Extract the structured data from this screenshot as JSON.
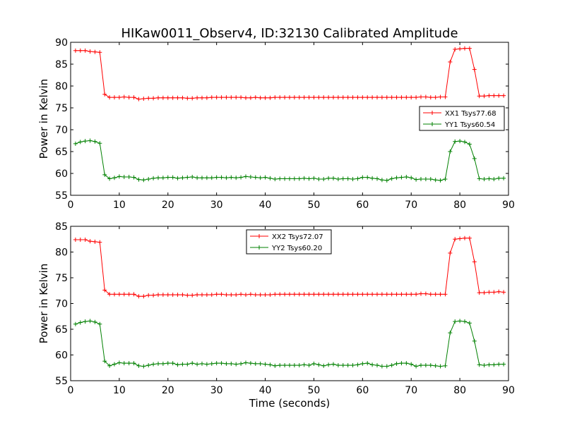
{
  "figure": {
    "title": "HIKaw0011_Observ4, ID:32130 Calibrated Amplitude",
    "xlabel": "Time (seconds)"
  },
  "chart_data": [
    {
      "type": "line",
      "ylabel": "Power in Kelvin",
      "xlim": [
        0,
        90
      ],
      "ylim": [
        55,
        90
      ],
      "xticks": [
        "0",
        "10",
        "20",
        "30",
        "40",
        "50",
        "60",
        "70",
        "80",
        "90"
      ],
      "yticks": [
        "55",
        "60",
        "65",
        "70",
        "75",
        "80",
        "85",
        "90"
      ],
      "legend_position": "center-right",
      "x": [
        1,
        2,
        3,
        4,
        5,
        6,
        7,
        8,
        9,
        10,
        11,
        12,
        13,
        14,
        15,
        16,
        17,
        18,
        19,
        20,
        21,
        22,
        23,
        24,
        25,
        26,
        27,
        28,
        29,
        30,
        31,
        32,
        33,
        34,
        35,
        36,
        37,
        38,
        39,
        40,
        41,
        42,
        43,
        44,
        45,
        46,
        47,
        48,
        49,
        50,
        51,
        52,
        53,
        54,
        55,
        56,
        57,
        58,
        59,
        60,
        61,
        62,
        63,
        64,
        65,
        66,
        67,
        68,
        69,
        70,
        71,
        72,
        73,
        74,
        75,
        76,
        77,
        78,
        79,
        80,
        81,
        82,
        83,
        84,
        85,
        86,
        87,
        88,
        89
      ],
      "series": [
        {
          "name": "XX1 Tsys77.68",
          "color": "#ff0000",
          "values": [
            88.1,
            88.1,
            88.1,
            87.9,
            87.8,
            87.7,
            78.1,
            77.4,
            77.4,
            77.4,
            77.5,
            77.4,
            77.4,
            77.0,
            77.1,
            77.2,
            77.2,
            77.3,
            77.3,
            77.3,
            77.3,
            77.3,
            77.3,
            77.2,
            77.2,
            77.3,
            77.3,
            77.3,
            77.4,
            77.4,
            77.4,
            77.4,
            77.4,
            77.4,
            77.4,
            77.3,
            77.3,
            77.4,
            77.3,
            77.3,
            77.3,
            77.4,
            77.4,
            77.4,
            77.4,
            77.4,
            77.4,
            77.4,
            77.4,
            77.4,
            77.4,
            77.4,
            77.4,
            77.4,
            77.4,
            77.4,
            77.4,
            77.4,
            77.4,
            77.4,
            77.4,
            77.4,
            77.4,
            77.4,
            77.4,
            77.4,
            77.4,
            77.4,
            77.4,
            77.4,
            77.4,
            77.5,
            77.5,
            77.4,
            77.4,
            77.5,
            77.5,
            85.5,
            88.4,
            88.5,
            88.6,
            88.6,
            83.8,
            77.7,
            77.7,
            77.8,
            77.8,
            77.8,
            77.8
          ]
        },
        {
          "name": "YY1 Tsys60.54",
          "color": "#008000",
          "values": [
            66.8,
            67.2,
            67.4,
            67.5,
            67.3,
            66.9,
            59.7,
            58.8,
            59.0,
            59.3,
            59.2,
            59.2,
            59.1,
            58.6,
            58.5,
            58.7,
            58.9,
            59.0,
            59.0,
            59.1,
            59.1,
            58.9,
            59.0,
            59.1,
            59.2,
            59.0,
            59.0,
            59.0,
            59.0,
            59.1,
            59.1,
            59.0,
            59.1,
            59.0,
            59.1,
            59.3,
            59.2,
            59.1,
            59.0,
            59.1,
            58.9,
            58.7,
            58.8,
            58.8,
            58.8,
            58.8,
            58.8,
            58.9,
            58.8,
            58.9,
            58.7,
            58.7,
            58.9,
            58.9,
            58.7,
            58.8,
            58.8,
            58.7,
            58.8,
            59.1,
            59.1,
            58.9,
            58.8,
            58.5,
            58.4,
            58.8,
            59.0,
            59.1,
            59.2,
            59.0,
            58.6,
            58.7,
            58.7,
            58.7,
            58.5,
            58.4,
            58.7,
            65.0,
            67.3,
            67.4,
            67.2,
            66.7,
            63.4,
            58.8,
            58.7,
            58.8,
            58.7,
            58.9,
            58.9
          ]
        }
      ]
    },
    {
      "type": "line",
      "ylabel": "Power in Kelvin",
      "xlim": [
        0,
        90
      ],
      "ylim": [
        55,
        85
      ],
      "xticks": [
        "0",
        "10",
        "20",
        "30",
        "40",
        "50",
        "60",
        "70",
        "80",
        "90"
      ],
      "yticks": [
        "55",
        "60",
        "65",
        "70",
        "75",
        "80",
        "85"
      ],
      "legend_position": "top-center",
      "x": [
        1,
        2,
        3,
        4,
        5,
        6,
        7,
        8,
        9,
        10,
        11,
        12,
        13,
        14,
        15,
        16,
        17,
        18,
        19,
        20,
        21,
        22,
        23,
        24,
        25,
        26,
        27,
        28,
        29,
        30,
        31,
        32,
        33,
        34,
        35,
        36,
        37,
        38,
        39,
        40,
        41,
        42,
        43,
        44,
        45,
        46,
        47,
        48,
        49,
        50,
        51,
        52,
        53,
        54,
        55,
        56,
        57,
        58,
        59,
        60,
        61,
        62,
        63,
        64,
        65,
        66,
        67,
        68,
        69,
        70,
        71,
        72,
        73,
        74,
        75,
        76,
        77,
        78,
        79,
        80,
        81,
        82,
        83,
        84,
        85,
        86,
        87,
        88,
        89
      ],
      "series": [
        {
          "name": "XX2 Tsys72.07",
          "color": "#ff0000",
          "values": [
            82.4,
            82.4,
            82.4,
            82.1,
            82.0,
            81.9,
            72.6,
            71.8,
            71.8,
            71.8,
            71.8,
            71.8,
            71.8,
            71.4,
            71.4,
            71.6,
            71.6,
            71.7,
            71.7,
            71.7,
            71.7,
            71.7,
            71.7,
            71.6,
            71.6,
            71.7,
            71.7,
            71.7,
            71.7,
            71.8,
            71.8,
            71.7,
            71.7,
            71.7,
            71.8,
            71.7,
            71.8,
            71.7,
            71.7,
            71.7,
            71.7,
            71.8,
            71.8,
            71.8,
            71.8,
            71.8,
            71.8,
            71.8,
            71.8,
            71.8,
            71.8,
            71.8,
            71.8,
            71.8,
            71.8,
            71.8,
            71.8,
            71.8,
            71.8,
            71.8,
            71.8,
            71.8,
            71.8,
            71.8,
            71.8,
            71.8,
            71.8,
            71.8,
            71.8,
            71.8,
            71.8,
            71.9,
            71.9,
            71.8,
            71.8,
            71.8,
            71.8,
            79.8,
            82.5,
            82.6,
            82.7,
            82.7,
            78.1,
            72.1,
            72.1,
            72.2,
            72.2,
            72.3,
            72.2
          ]
        },
        {
          "name": "YY2 Tsys60.20",
          "color": "#008000",
          "values": [
            66.0,
            66.3,
            66.5,
            66.6,
            66.4,
            66.0,
            58.8,
            57.9,
            58.2,
            58.5,
            58.4,
            58.4,
            58.4,
            57.9,
            57.8,
            58.0,
            58.2,
            58.3,
            58.3,
            58.4,
            58.4,
            58.1,
            58.2,
            58.2,
            58.4,
            58.2,
            58.3,
            58.2,
            58.3,
            58.4,
            58.4,
            58.3,
            58.3,
            58.2,
            58.3,
            58.5,
            58.4,
            58.3,
            58.3,
            58.2,
            58.1,
            57.9,
            58.0,
            58.0,
            58.0,
            58.0,
            58.0,
            58.1,
            58.0,
            58.3,
            58.1,
            57.9,
            58.1,
            58.2,
            58.0,
            58.0,
            58.0,
            58.0,
            58.1,
            58.3,
            58.4,
            58.1,
            58.0,
            57.8,
            57.8,
            58.0,
            58.3,
            58.4,
            58.4,
            58.2,
            57.8,
            58.0,
            58.0,
            58.0,
            57.9,
            57.8,
            57.9,
            64.3,
            66.5,
            66.6,
            66.5,
            66.2,
            62.7,
            58.1,
            58.0,
            58.1,
            58.1,
            58.2,
            58.2
          ]
        }
      ]
    }
  ]
}
